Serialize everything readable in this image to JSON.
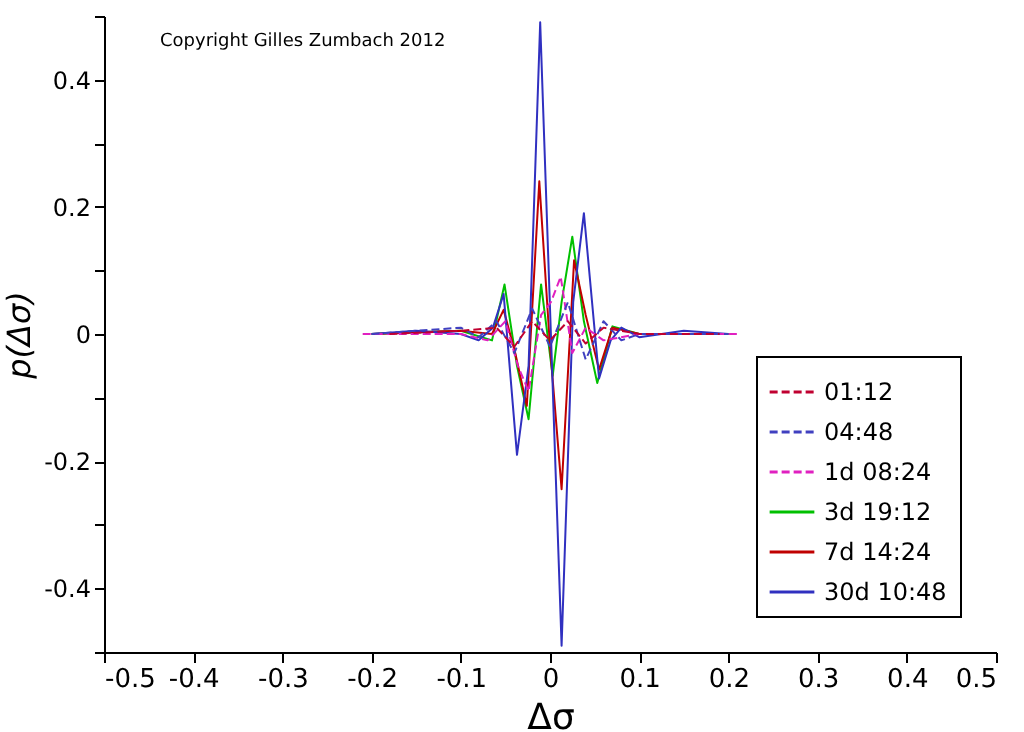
{
  "chart_data": {
    "type": "line",
    "xlabel": "Δσ",
    "ylabel": "p(Δσ)",
    "annotations": [
      "Copyright Gilles Zumbach 2012"
    ],
    "xlim": [
      -0.5,
      0.5
    ],
    "ylim": [
      -0.5,
      0.5
    ],
    "xticks": [
      -0.5,
      -0.4,
      -0.3,
      -0.2,
      -0.1,
      0,
      0.1,
      0.2,
      0.3,
      0.4,
      0.5
    ],
    "yticks": [
      {
        "value": -0.5,
        "label": null
      },
      -0.4,
      {
        "value": -0.3,
        "label": null
      },
      -0.2,
      {
        "value": -0.1,
        "label": null
      },
      0,
      {
        "value": 0.1,
        "label": null
      },
      0.2,
      {
        "value": 0.3,
        "label": null
      },
      0.4,
      {
        "value": 0.5,
        "label": null
      }
    ],
    "grid": false,
    "legend": "bottom right",
    "marker": "none",
    "series": [
      {
        "name": "01:12",
        "color": "#c00030",
        "line_style": "dashed",
        "x": [
          -0.18,
          -0.1,
          -0.06,
          -0.04,
          -0.02,
          0,
          0.02,
          0.04,
          0.06,
          0.1,
          0.19
        ],
        "values": [
          0,
          0.005,
          0.01,
          -0.02,
          0.02,
          -0.01,
          0.02,
          -0.015,
          0.01,
          0,
          0
        ]
      },
      {
        "name": "04:48",
        "color": "#4040c0",
        "line_style": "dashed",
        "x": [
          -0.2,
          -0.1,
          -0.08,
          -0.06,
          -0.04,
          -0.02,
          0,
          0.02,
          0.04,
          0.06,
          0.08,
          0.1,
          0.2
        ],
        "values": [
          0,
          0.01,
          -0.005,
          0.02,
          -0.03,
          0.04,
          -0.02,
          0.05,
          -0.04,
          0.02,
          -0.01,
          0,
          0
        ]
      },
      {
        "name": "1d 08:24",
        "color": "#e020c0",
        "line_style": "dashed",
        "x": [
          -0.21,
          -0.1,
          -0.07,
          -0.05,
          -0.036,
          -0.024,
          -0.01,
          0.001,
          0.012,
          0.025,
          0.04,
          0.06,
          0.1,
          0.21
        ],
        "values": [
          0,
          0,
          -0.01,
          0.02,
          -0.05,
          -0.09,
          0.03,
          0.05,
          0.09,
          -0.03,
          0.01,
          -0.01,
          0,
          0
        ]
      },
      {
        "name": "3d 19:12",
        "color": "#00c000",
        "line_style": "solid",
        "x": [
          -0.2,
          -0.1,
          -0.065,
          -0.051,
          -0.037,
          -0.024,
          -0.01,
          0.003,
          0.013,
          0.025,
          0.038,
          0.053,
          0.07,
          0.1,
          0.2
        ],
        "values": [
          0,
          0.005,
          -0.01,
          0.078,
          -0.05,
          -0.134,
          0.078,
          -0.066,
          0.05,
          0.153,
          0.02,
          -0.077,
          0.012,
          0,
          0
        ]
      },
      {
        "name": "7d 14:24",
        "color": "#c00000",
        "line_style": "solid",
        "x": [
          -0.2,
          -0.1,
          -0.065,
          -0.052,
          -0.039,
          -0.026,
          -0.012,
          0,
          0.013,
          0.027,
          0.04,
          0.055,
          0.07,
          0.1,
          0.2
        ],
        "values": [
          0,
          0.005,
          0,
          0.038,
          -0.03,
          -0.113,
          0.24,
          -0.02,
          -0.244,
          0.116,
          0.03,
          -0.056,
          0.01,
          0,
          0
        ]
      },
      {
        "name": "30d 10:48",
        "color": "#3030c0",
        "line_style": "solid",
        "x": [
          -0.2,
          -0.15,
          -0.1,
          -0.08,
          -0.064,
          -0.052,
          -0.037,
          -0.024,
          -0.011,
          0.001,
          0.013,
          0.026,
          0.038,
          0.055,
          0.068,
          0.08,
          0.1,
          0.15,
          0.2
        ],
        "values": [
          0,
          0.005,
          0,
          -0.01,
          0.01,
          0.063,
          -0.19,
          -0.05,
          0.49,
          0,
          -0.49,
          0.05,
          0.19,
          -0.07,
          -0.01,
          0.01,
          -0.005,
          0.005,
          0
        ]
      }
    ]
  }
}
